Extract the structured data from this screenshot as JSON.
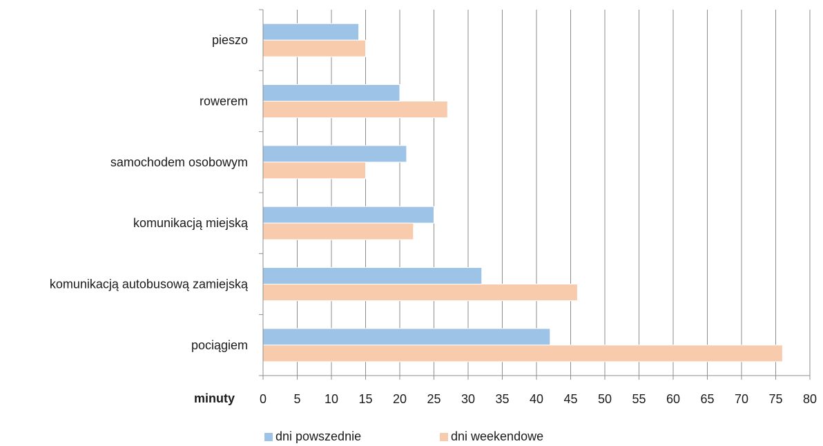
{
  "chart_data": {
    "type": "bar",
    "orientation": "horizontal",
    "categories": [
      "pieszo",
      "rowerem",
      "samochodem osobowym",
      "komunikacją miejską",
      "komunikacją autobusową zamiejską",
      "pociągiem"
    ],
    "series": [
      {
        "name": "dni powszednie",
        "values": [
          14,
          20,
          21,
          25,
          32,
          42
        ],
        "color": "#9dc3e6"
      },
      {
        "name": "dni weekendowe",
        "values": [
          15,
          27,
          15,
          22,
          46,
          76
        ],
        "color": "#f8cbad"
      }
    ],
    "xlabel": "minuty",
    "xlim": [
      0,
      80
    ],
    "xticks": [
      "0",
      "5",
      "10",
      "15",
      "20",
      "25",
      "30",
      "35",
      "40",
      "45",
      "50",
      "55",
      "60",
      "65",
      "70",
      "75",
      "80"
    ],
    "grid": true,
    "legend": "bottom"
  }
}
